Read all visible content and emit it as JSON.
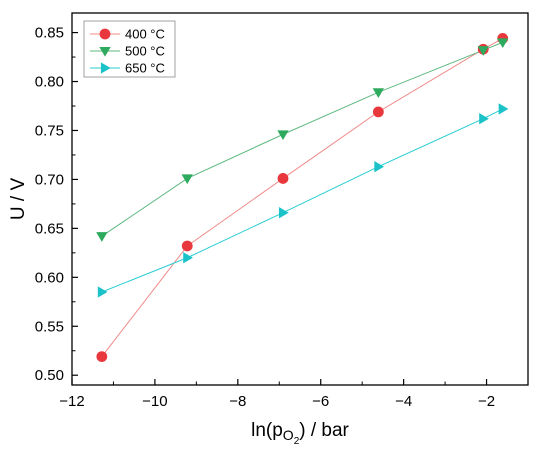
{
  "chart_data": {
    "type": "scatter",
    "xlabel": "ln(pO2) / bar",
    "ylabel": "U / V",
    "xlim": [
      -12,
      -1
    ],
    "ylim": [
      0.49,
      0.87
    ],
    "x_ticks": [
      "−12",
      "−10",
      "−8",
      "−6",
      "−4",
      "−2"
    ],
    "y_ticks": [
      "0.50",
      "0.55",
      "0.60",
      "0.65",
      "0.70",
      "0.75",
      "0.80",
      "0.85"
    ],
    "grid": false,
    "legend_position": "top-left",
    "series": [
      {
        "name": "400 °C",
        "marker": "circle",
        "color": "#e8383d",
        "line_color": "#f08a8a",
        "x": [
          -11.28,
          -9.22,
          -6.91,
          -4.61,
          -2.08,
          -1.61
        ],
        "y": [
          0.519,
          0.632,
          0.701,
          0.769,
          0.833,
          0.844
        ]
      },
      {
        "name": "500 °C",
        "marker": "triangle-down",
        "color": "#2eaa5e",
        "line_color": "#5cb87f",
        "x": [
          -11.28,
          -9.22,
          -6.91,
          -4.61,
          -2.08,
          -1.61
        ],
        "y": [
          0.642,
          0.701,
          0.746,
          0.789,
          0.832,
          0.84
        ]
      },
      {
        "name": "650 °C",
        "marker": "triangle-right",
        "color": "#1bc3c9",
        "line_color": "#28cdd3",
        "x": [
          -11.28,
          -9.22,
          -6.91,
          -4.61,
          -2.08,
          -1.61
        ],
        "y": [
          0.585,
          0.62,
          0.666,
          0.713,
          0.762,
          0.772
        ]
      }
    ]
  }
}
